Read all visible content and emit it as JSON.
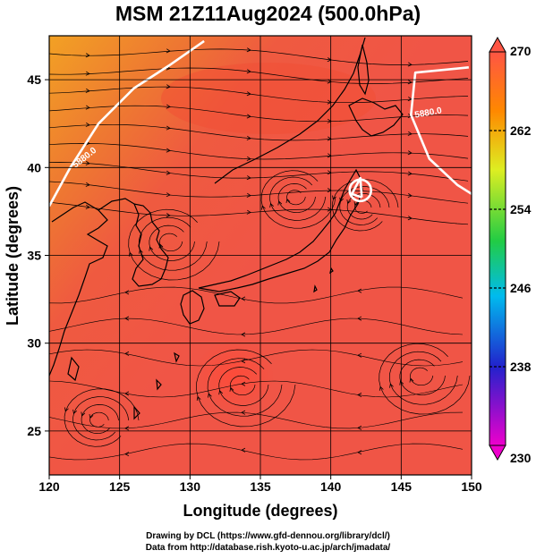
{
  "title": "MSM 21Z11Aug2024 (500.0hPa)",
  "xlabel": "Longitude (degrees)",
  "ylabel": "Latitude  (degrees)",
  "credit_line1": "Drawing by DCL (https://www.gfd-dennou.org/library/dcl/)",
  "credit_line2": "Data from http://database.rish.kyoto-u.ac.jp/arch/jmadata/",
  "chart_data": {
    "type": "heatmap",
    "xlim": [
      120,
      150
    ],
    "ylim": [
      22.5,
      47.5
    ],
    "xticks": [
      120,
      125,
      130,
      135,
      140,
      145,
      150
    ],
    "yticks": [
      25,
      30,
      35,
      40,
      45
    ],
    "grid": true,
    "colorbar": {
      "min": 230,
      "max": 270,
      "ticks": [
        230,
        238,
        246,
        254,
        262,
        270
      ],
      "extend": "both",
      "colors": [
        "#ee00cc",
        "#2222cc",
        "#00bbee",
        "#22cc44",
        "#ddee22",
        "#ff8800",
        "#ff5544"
      ]
    },
    "contours": [
      {
        "label": "5880.0",
        "points": [
          [
            120,
            37.8
          ],
          [
            121.5,
            40
          ],
          [
            123.5,
            42.5
          ],
          [
            126,
            44.5
          ],
          [
            128.5,
            45.8
          ],
          [
            131,
            47.2
          ]
        ]
      },
      {
        "label": "5880.0",
        "points": [
          [
            149.8,
            45.7
          ],
          [
            146,
            45.4
          ],
          [
            145.7,
            43
          ],
          [
            147,
            40.5
          ],
          [
            149,
            39
          ],
          [
            150,
            38.5
          ]
        ]
      },
      {
        "label": "",
        "points": [
          [
            142.2,
            38.3
          ],
          [
            142.1,
            39.4
          ],
          [
            141.5,
            38.5
          ],
          [
            142.2,
            38.3
          ]
        ]
      }
    ],
    "field_regions": [
      {
        "lon": 120,
        "lat": 47.5,
        "level": 264.5
      },
      {
        "lon": 126,
        "lat": 44,
        "level": 266.5
      },
      {
        "lon": 140,
        "lat": 35,
        "level": 268.5
      },
      {
        "lon": 134,
        "lat": 29,
        "level": 269.5
      }
    ]
  }
}
